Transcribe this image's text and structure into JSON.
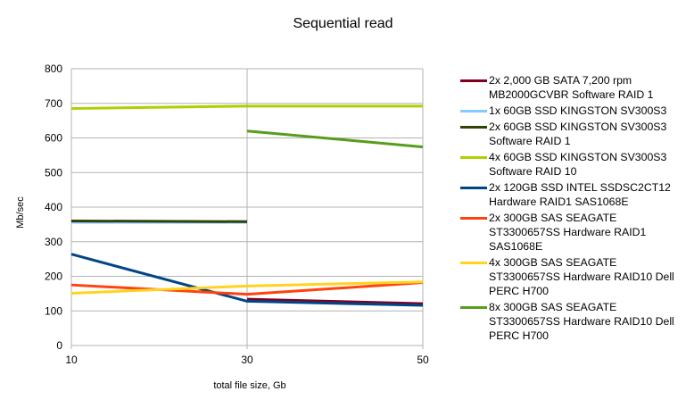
{
  "chart_data": {
    "type": "line",
    "title": "Sequential read",
    "xlabel": "total file size, Gb",
    "ylabel": "Mb/sec",
    "x": [
      10,
      30,
      50
    ],
    "ylim": [
      0,
      800
    ],
    "yticks": [
      0,
      100,
      200,
      300,
      400,
      500,
      600,
      700,
      800
    ],
    "grid": true,
    "legend": "right",
    "series": [
      {
        "name": "2x 2,000 GB SATA 7,200 rpm MB2000GCVBR Software RAID 1",
        "color": "#7e0021",
        "values": [
          null,
          134,
          121
        ]
      },
      {
        "name": "1x 60GB SSD KINGSTON SV300S3",
        "color": "#83caff",
        "values": [
          356,
          356,
          null
        ]
      },
      {
        "name": "2x 60GB SSD KINGSTON SV300S3 Software RAID 1",
        "color": "#314004",
        "values": [
          360,
          358,
          null
        ]
      },
      {
        "name": "4x 60GB SSD KINGSTON SV300S3 Software RAID 10",
        "color": "#aecf00",
        "values": [
          685,
          692,
          692
        ]
      },
      {
        "name": "2x 120GB SSD INTEL SSDSC2CT12 Hardware RAID1 SAS1068E",
        "color": "#004586",
        "values": [
          264,
          128,
          116
        ]
      },
      {
        "name": "2x 300GB SAS SEAGATE ST3300657SS Hardware RAID1 SAS1068E",
        "color": "#ff420e",
        "values": [
          175,
          148,
          182
        ]
      },
      {
        "name": "4x 300GB SAS SEAGATE ST3300657SS Hardware RAID10 Dell PERC H700",
        "color": "#ffd320",
        "values": [
          151,
          172,
          184
        ]
      },
      {
        "name": "8x 300GB SAS SEAGATE ST3300657SS Hardware RAID10 Dell PERC H700",
        "color": "#579d1c",
        "values": [
          null,
          620,
          574
        ]
      }
    ]
  }
}
